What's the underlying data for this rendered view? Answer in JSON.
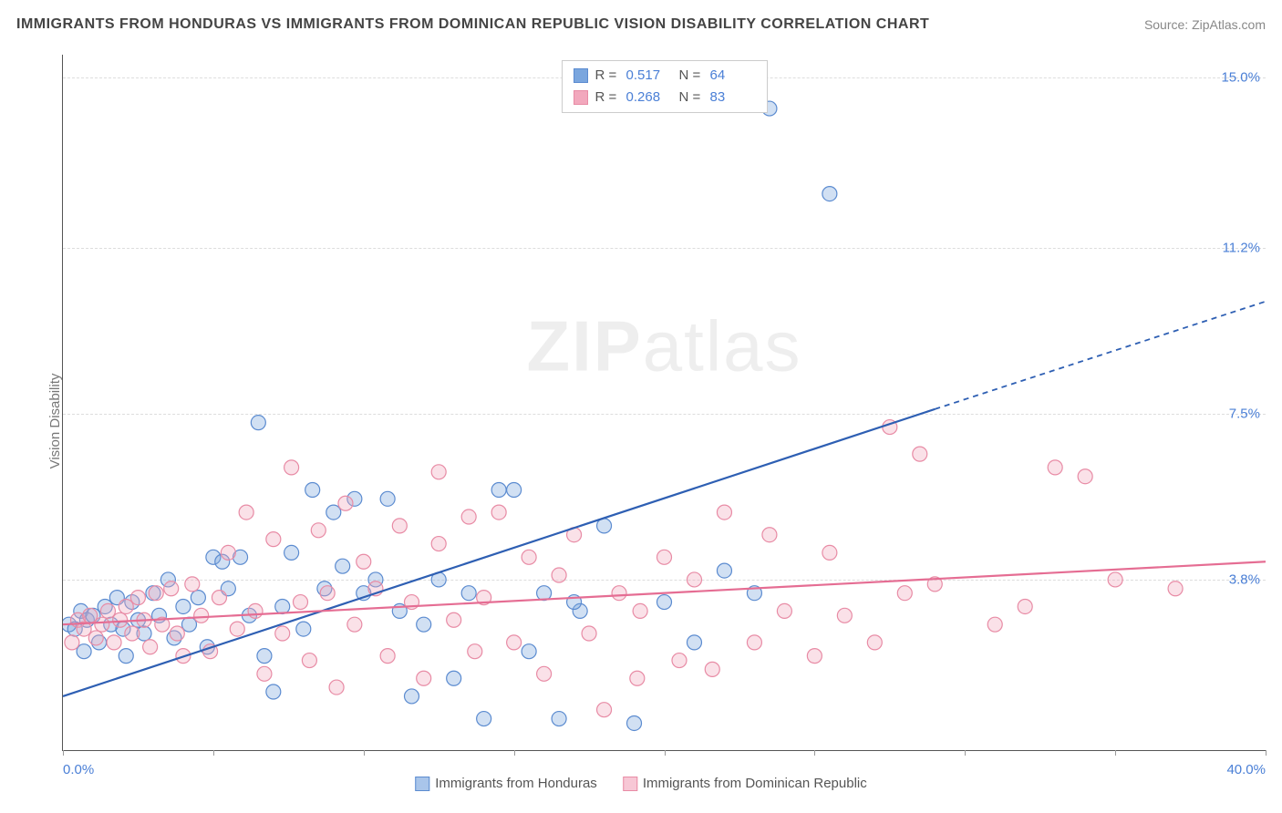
{
  "title": "IMMIGRANTS FROM HONDURAS VS IMMIGRANTS FROM DOMINICAN REPUBLIC VISION DISABILITY CORRELATION CHART",
  "source": "Source: ZipAtlas.com",
  "ylabel": "Vision Disability",
  "watermark": {
    "bold": "ZIP",
    "rest": "atlas"
  },
  "chart": {
    "type": "scatter",
    "background_color": "#ffffff",
    "grid_color": "#dddddd",
    "axis_color": "#555555",
    "tick_color": "#999999",
    "value_text_color": "#4a7fd6",
    "xlim": [
      0,
      40
    ],
    "ylim": [
      0,
      15.5
    ],
    "ytick_positions": [
      3.8,
      7.5,
      11.2,
      15.0
    ],
    "ytick_labels": [
      "3.8%",
      "7.5%",
      "11.2%",
      "15.0%"
    ],
    "xtick_positions": [
      0,
      5,
      10,
      15,
      20,
      25,
      30,
      35,
      40
    ],
    "x_origin_label": "0.0%",
    "x_max_label": "40.0%",
    "marker_radius": 8,
    "series": [
      {
        "id": "honduras",
        "name": "Immigrants from Honduras",
        "color": "#7aa6de",
        "stroke": "#5b8bd0",
        "trend_color": "#2e5fb3",
        "r": 0.517,
        "n": 64,
        "trend": {
          "x0": 0,
          "y0": 1.2,
          "x1": 29,
          "y1": 7.6,
          "x2": 40,
          "y2": 10.0
        },
        "points": [
          [
            0.2,
            2.8
          ],
          [
            0.4,
            2.7
          ],
          [
            0.6,
            3.1
          ],
          [
            0.7,
            2.2
          ],
          [
            0.8,
            2.9
          ],
          [
            1.0,
            3.0
          ],
          [
            1.2,
            2.4
          ],
          [
            1.4,
            3.2
          ],
          [
            1.6,
            2.8
          ],
          [
            1.8,
            3.4
          ],
          [
            2.0,
            2.7
          ],
          [
            2.1,
            2.1
          ],
          [
            2.3,
            3.3
          ],
          [
            2.5,
            2.9
          ],
          [
            2.7,
            2.6
          ],
          [
            3.0,
            3.5
          ],
          [
            3.2,
            3.0
          ],
          [
            3.5,
            3.8
          ],
          [
            3.7,
            2.5
          ],
          [
            4.0,
            3.2
          ],
          [
            4.2,
            2.8
          ],
          [
            4.5,
            3.4
          ],
          [
            4.8,
            2.3
          ],
          [
            5.0,
            4.3
          ],
          [
            5.3,
            4.2
          ],
          [
            5.5,
            3.6
          ],
          [
            5.9,
            4.3
          ],
          [
            6.2,
            3.0
          ],
          [
            6.5,
            7.3
          ],
          [
            6.7,
            2.1
          ],
          [
            7.0,
            1.3
          ],
          [
            7.3,
            3.2
          ],
          [
            7.6,
            4.4
          ],
          [
            8.0,
            2.7
          ],
          [
            8.3,
            5.8
          ],
          [
            8.7,
            3.6
          ],
          [
            9.0,
            5.3
          ],
          [
            9.3,
            4.1
          ],
          [
            9.7,
            5.6
          ],
          [
            10.0,
            3.5
          ],
          [
            10.4,
            3.8
          ],
          [
            10.8,
            5.6
          ],
          [
            11.2,
            3.1
          ],
          [
            11.6,
            1.2
          ],
          [
            12.0,
            2.8
          ],
          [
            12.5,
            3.8
          ],
          [
            13.0,
            1.6
          ],
          [
            13.5,
            3.5
          ],
          [
            14.0,
            0.7
          ],
          [
            14.5,
            5.8
          ],
          [
            15.0,
            5.8
          ],
          [
            15.5,
            2.2
          ],
          [
            16.0,
            3.5
          ],
          [
            16.5,
            0.7
          ],
          [
            17.2,
            3.1
          ],
          [
            18.0,
            5.0
          ],
          [
            19.0,
            0.6
          ],
          [
            20.0,
            3.3
          ],
          [
            21.0,
            2.4
          ],
          [
            22.0,
            4.0
          ],
          [
            23.5,
            14.3
          ],
          [
            25.5,
            12.4
          ],
          [
            23.0,
            3.5
          ],
          [
            17.0,
            3.3
          ]
        ]
      },
      {
        "id": "dominican",
        "name": "Immigrants from Dominican Republic",
        "color": "#f2a8bd",
        "stroke": "#e88ba5",
        "trend_color": "#e56d93",
        "r": 0.268,
        "n": 83,
        "trend": {
          "x0": 0,
          "y0": 2.8,
          "x1": 40,
          "y1": 4.2,
          "x2": 40,
          "y2": 4.2
        },
        "points": [
          [
            0.3,
            2.4
          ],
          [
            0.5,
            2.9
          ],
          [
            0.7,
            2.7
          ],
          [
            0.9,
            3.0
          ],
          [
            1.1,
            2.5
          ],
          [
            1.3,
            2.8
          ],
          [
            1.5,
            3.1
          ],
          [
            1.7,
            2.4
          ],
          [
            1.9,
            2.9
          ],
          [
            2.1,
            3.2
          ],
          [
            2.3,
            2.6
          ],
          [
            2.5,
            3.4
          ],
          [
            2.7,
            2.9
          ],
          [
            2.9,
            2.3
          ],
          [
            3.1,
            3.5
          ],
          [
            3.3,
            2.8
          ],
          [
            3.6,
            3.6
          ],
          [
            3.8,
            2.6
          ],
          [
            4.0,
            2.1
          ],
          [
            4.3,
            3.7
          ],
          [
            4.6,
            3.0
          ],
          [
            4.9,
            2.2
          ],
          [
            5.2,
            3.4
          ],
          [
            5.5,
            4.4
          ],
          [
            5.8,
            2.7
          ],
          [
            6.1,
            5.3
          ],
          [
            6.4,
            3.1
          ],
          [
            6.7,
            1.7
          ],
          [
            7.0,
            4.7
          ],
          [
            7.3,
            2.6
          ],
          [
            7.6,
            6.3
          ],
          [
            7.9,
            3.3
          ],
          [
            8.2,
            2.0
          ],
          [
            8.5,
            4.9
          ],
          [
            8.8,
            3.5
          ],
          [
            9.1,
            1.4
          ],
          [
            9.4,
            5.5
          ],
          [
            9.7,
            2.8
          ],
          [
            10.0,
            4.2
          ],
          [
            10.4,
            3.6
          ],
          [
            10.8,
            2.1
          ],
          [
            11.2,
            5.0
          ],
          [
            11.6,
            3.3
          ],
          [
            12.0,
            1.6
          ],
          [
            12.5,
            4.6
          ],
          [
            12.5,
            6.2
          ],
          [
            13.0,
            2.9
          ],
          [
            13.7,
            2.2
          ],
          [
            13.5,
            5.2
          ],
          [
            14.0,
            3.4
          ],
          [
            14.5,
            5.3
          ],
          [
            15.0,
            2.4
          ],
          [
            15.5,
            4.3
          ],
          [
            16.0,
            1.7
          ],
          [
            16.5,
            3.9
          ],
          [
            17.0,
            4.8
          ],
          [
            17.5,
            2.6
          ],
          [
            18.0,
            0.9
          ],
          [
            18.5,
            3.5
          ],
          [
            19.2,
            3.1
          ],
          [
            19.1,
            1.6
          ],
          [
            20.0,
            4.3
          ],
          [
            20.5,
            2.0
          ],
          [
            21.0,
            3.8
          ],
          [
            21.6,
            1.8
          ],
          [
            22.0,
            5.3
          ],
          [
            23.0,
            2.4
          ],
          [
            23.5,
            4.8
          ],
          [
            24.0,
            3.1
          ],
          [
            25.0,
            2.1
          ],
          [
            25.5,
            4.4
          ],
          [
            26.0,
            3.0
          ],
          [
            27.0,
            2.4
          ],
          [
            27.5,
            7.2
          ],
          [
            28.0,
            3.5
          ],
          [
            28.5,
            6.6
          ],
          [
            29.0,
            3.7
          ],
          [
            31.0,
            2.8
          ],
          [
            32.0,
            3.2
          ],
          [
            33.0,
            6.3
          ],
          [
            34.0,
            6.1
          ],
          [
            35.0,
            3.8
          ],
          [
            37.0,
            3.6
          ]
        ]
      }
    ],
    "legend_bottom": [
      {
        "label": "Immigrants from Honduras",
        "fill": "#a9c5ea",
        "stroke": "#5b8bd0"
      },
      {
        "label": "Immigrants from Dominican Republic",
        "fill": "#f7c7d5",
        "stroke": "#e88ba5"
      }
    ]
  }
}
